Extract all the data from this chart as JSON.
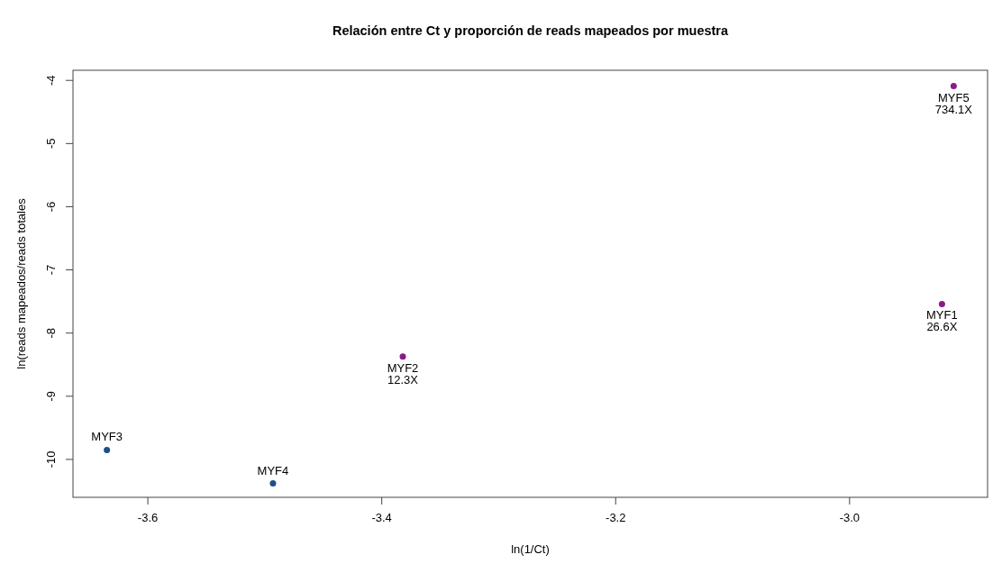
{
  "chart_data": {
    "type": "scatter",
    "title": "Relación entre Ct y proporción de reads mapeados por muestra",
    "xlabel": "ln(1/Ct)",
    "ylabel": "ln(reads mapeados/reads totales",
    "xlim": [
      -3.664,
      -2.882
    ],
    "ylim": [
      -10.6,
      -3.84
    ],
    "xticks": [
      -3.6,
      -3.4,
      -3.2,
      {
        "value": -3,
        "label": "-3.0"
      }
    ],
    "yticks": [
      -4,
      -5,
      -6,
      -7,
      -8,
      -9,
      -10
    ],
    "marker": "circle",
    "series": [
      {
        "color": "#1f4e8c",
        "x": [
          -3.635,
          -3.493
        ],
        "values": [
          -9.85,
          -10.38
        ]
      },
      {
        "color": "#8b1a8b",
        "x": [
          -3.382,
          -2.921,
          -2.911
        ],
        "values": [
          -8.37,
          -7.54,
          -4.09
        ]
      }
    ],
    "annotations": [
      {
        "text": "MYF3",
        "x": -3.635,
        "y": -9.85
      },
      {
        "text": "MYF4",
        "x": -3.493,
        "y": -10.38
      },
      {
        "text": "MYF2\n12.3X",
        "x": -3.382,
        "y": -8.37
      },
      {
        "text": "MYF1\n26.6X",
        "x": -2.921,
        "y": -7.54
      },
      {
        "text": "MYF5\n734.1X",
        "x": -2.911,
        "y": -4.09
      }
    ]
  }
}
